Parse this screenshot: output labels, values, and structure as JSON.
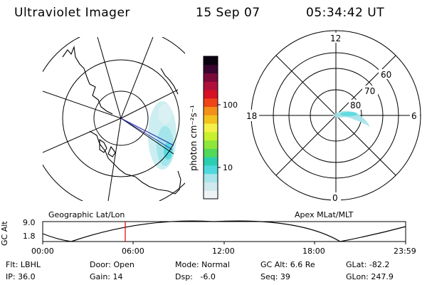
{
  "header": {
    "title": "Ultraviolet Imager",
    "date": "15 Sep 07",
    "time": "05:34:42 UT"
  },
  "colorbar": {
    "unit_label": "photon cm⁻²s⁻¹",
    "ticks": [
      "100",
      "10"
    ],
    "colors": [
      "#eef3f5",
      "#cfe9ee",
      "#a8e4ea",
      "#4fd9df",
      "#2bcfb0",
      "#52d85a",
      "#8fe63a",
      "#c8f02e",
      "#f4f24a",
      "#f3c21e",
      "#f1901a",
      "#ee4418",
      "#d61026",
      "#b0103c",
      "#7a0a3a",
      "#3a0530",
      "#0a0210"
    ]
  },
  "left_panel": {
    "caption": "Geographic Lat/Lon"
  },
  "right_panel": {
    "caption": "Apex MLat/MLT",
    "mlt_labels": {
      "top": "12",
      "right": "6",
      "bottom": "0",
      "left": "18"
    },
    "lat_labels": [
      "60",
      "70",
      "80"
    ]
  },
  "altitude_plot": {
    "ylabel": "GC Alt",
    "ytick_top": "9.0",
    "ytick_bottom": "1.8",
    "xticks": [
      "00:00",
      "06:00",
      "12:00",
      "18:00",
      "23:59"
    ]
  },
  "footer": {
    "flt": "Flt: LBHL",
    "door": "Door: Open",
    "mode": "Mode: Normal",
    "gc_alt": "GC Alt: 6.6 Re",
    "glat": "GLat: -82.2",
    "ip": "IP: 36.0",
    "gain": "Gain: 14",
    "dsp": "Dsp:   -6.0",
    "seq": "Seq: 39",
    "glon": "GLon: 247.9"
  }
}
